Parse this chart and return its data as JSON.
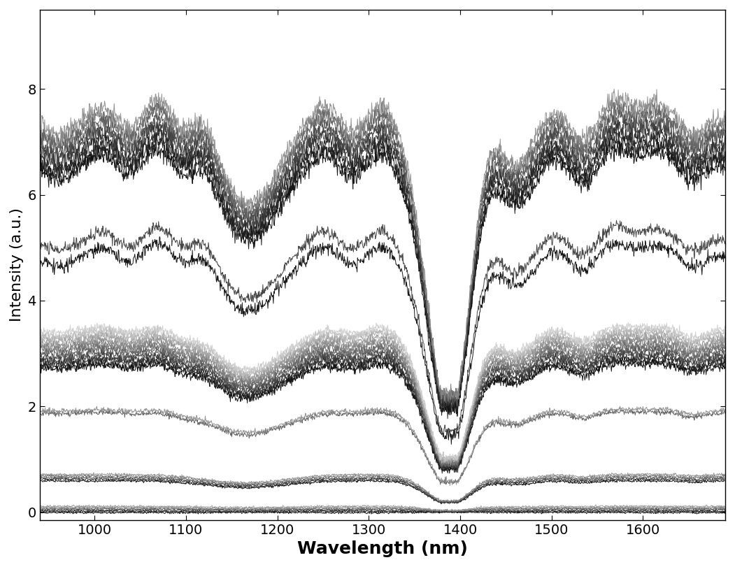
{
  "xlabel": "Wavelength (nm)",
  "ylabel": "Intensity (a.u.)",
  "xlim": [
    940,
    1690
  ],
  "ylim": [
    -0.15,
    9.5
  ],
  "xticks": [
    1000,
    1100,
    1200,
    1300,
    1400,
    1500,
    1600
  ],
  "yticks": [
    0,
    2,
    4,
    6,
    8
  ],
  "xlabel_fontsize": 18,
  "ylabel_fontsize": 16,
  "tick_fontsize": 14,
  "background_color": "#ffffff",
  "line_width": 0.7,
  "groups": [
    {
      "base": 7.0,
      "spread": 0.9,
      "count": 9,
      "colors": [
        "#000000",
        "#111111",
        "#1a1a1a",
        "#222222",
        "#333333",
        "#444444",
        "#555555",
        "#666666",
        "#888888"
      ],
      "noise_hi": 0.08,
      "noise_lo": 0.03,
      "feature_scale": 1.0
    },
    {
      "base": 5.0,
      "spread": 0.3,
      "count": 2,
      "colors": [
        "#000000",
        "#333333"
      ],
      "noise_hi": 0.06,
      "noise_lo": 0.02,
      "feature_scale": 1.0
    },
    {
      "base": 3.1,
      "spread": 0.7,
      "count": 13,
      "colors": [
        "#000000",
        "#111111",
        "#222222",
        "#333333",
        "#444444",
        "#555555",
        "#666666",
        "#777777",
        "#888888",
        "#999999",
        "#aaaaaa",
        "#bbbbbb",
        "#cccccc"
      ],
      "noise_hi": 0.04,
      "noise_lo": 0.015,
      "feature_scale": 0.45
    },
    {
      "base": 1.9,
      "spread": 0.05,
      "count": 2,
      "colors": [
        "#555555",
        "#888888"
      ],
      "noise_hi": 0.025,
      "noise_lo": 0.008,
      "feature_scale": 0.25
    },
    {
      "base": 0.65,
      "spread": 0.12,
      "count": 5,
      "colors": [
        "#000000",
        "#222222",
        "#444444",
        "#666666",
        "#888888"
      ],
      "noise_hi": 0.012,
      "noise_lo": 0.004,
      "feature_scale": 0.06
    },
    {
      "base": 0.05,
      "spread": 0.12,
      "count": 6,
      "colors": [
        "#000000",
        "#111111",
        "#333333",
        "#555555",
        "#777777",
        "#999999"
      ],
      "noise_hi": 0.01,
      "noise_lo": 0.003,
      "feature_scale": 0.03
    }
  ]
}
